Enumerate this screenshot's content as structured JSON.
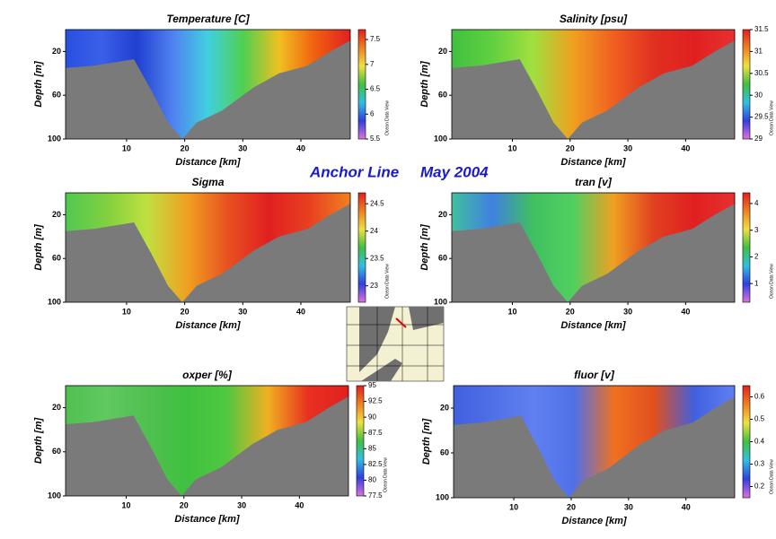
{
  "title": "Anchor Line",
  "subtitle": "May 2004",
  "watermark": "Ocean Data View",
  "colorscale": [
    "#e070e0",
    "#3040e0",
    "#30c0e0",
    "#40c040",
    "#f0e040",
    "#f08020",
    "#e02020"
  ],
  "chart_data": [
    {
      "type": "contour",
      "title": "Temperature [C]",
      "xlabel": "Distance [km]",
      "ylabel": "Depth [m]",
      "xlim": [
        -0.5,
        48.5
      ],
      "xticks": [
        10,
        20,
        30,
        40
      ],
      "ylim": [
        100,
        0
      ],
      "yticks": [
        20,
        60,
        100
      ],
      "colorbar": {
        "lim": [
          5.5,
          7.7
        ],
        "ticks": [
          5.5,
          6,
          6.5,
          7,
          7.5
        ]
      },
      "field_colors": [
        "#2850e0",
        "#3a60e8",
        "#2040d0",
        "#5080f0",
        "#40d0e0",
        "#50d050",
        "#f0c020",
        "#f06010",
        "#e02020"
      ]
    },
    {
      "type": "contour",
      "title": "Salinity [psu]",
      "xlabel": "Distance [km]",
      "ylabel": "Depth [m]",
      "xlim": [
        -0.5,
        48.5
      ],
      "xticks": [
        10,
        20,
        30,
        40
      ],
      "ylim": [
        100,
        0
      ],
      "yticks": [
        20,
        60,
        100
      ],
      "colorbar": {
        "lim": [
          29,
          31.5
        ],
        "ticks": [
          29,
          29.5,
          30,
          30.5,
          31,
          31.5
        ]
      },
      "field_colors": [
        "#40c040",
        "#60d040",
        "#a0e040",
        "#f0a020",
        "#f06020",
        "#e03020",
        "#e02020",
        "#e83030"
      ]
    },
    {
      "type": "contour",
      "title": "Sigma",
      "xlabel": "Distance [km]",
      "ylabel": "Depth [m]",
      "xlim": [
        -0.5,
        48.5
      ],
      "xticks": [
        10,
        20,
        30,
        40
      ],
      "ylim": [
        100,
        0
      ],
      "yticks": [
        20,
        60,
        100
      ],
      "colorbar": {
        "lim": [
          22.7,
          24.7
        ],
        "ticks": [
          23,
          23.5,
          24,
          24.5
        ]
      },
      "field_colors": [
        "#50c850",
        "#80d040",
        "#c0e040",
        "#f0a020",
        "#e85020",
        "#e02020",
        "#e84020",
        "#f08020"
      ]
    },
    {
      "type": "contour",
      "title": "tran [v]",
      "xlabel": "Distance [km]",
      "ylabel": "Depth [m]",
      "xlim": [
        -0.5,
        48.5
      ],
      "xticks": [
        10,
        20,
        30,
        40
      ],
      "ylim": [
        100,
        0
      ],
      "yticks": [
        20,
        60,
        100
      ],
      "colorbar": {
        "lim": [
          0.3,
          4.4
        ],
        "ticks": [
          1,
          2,
          3,
          4
        ]
      },
      "field_colors": [
        "#40c0a0",
        "#4080e0",
        "#40c060",
        "#50d060",
        "#f0a020",
        "#e04020",
        "#e02020",
        "#e83030"
      ]
    },
    {
      "type": "contour",
      "title": "oxper [%]",
      "xlabel": "Distance [km]",
      "ylabel": "Depth [m]",
      "xlim": [
        -0.5,
        48.5
      ],
      "xticks": [
        10,
        20,
        30,
        40
      ],
      "ylim": [
        100,
        0
      ],
      "yticks": [
        20,
        60,
        100
      ],
      "colorbar": {
        "lim": [
          77.5,
          95
        ],
        "ticks": [
          77.5,
          80,
          82.5,
          85,
          87.5,
          90,
          92.5,
          95
        ]
      },
      "field_colors": [
        "#50c050",
        "#60c860",
        "#50c050",
        "#40c040",
        "#50c840",
        "#f0b020",
        "#e83020",
        "#e02020"
      ]
    },
    {
      "type": "contour",
      "title": "fluor [v]",
      "xlabel": "Distance [km]",
      "ylabel": "Depth [m]",
      "xlim": [
        -0.5,
        48.5
      ],
      "xticks": [
        10,
        20,
        30,
        40
      ],
      "ylim": [
        100,
        0
      ],
      "yticks": [
        20,
        60,
        100
      ],
      "colorbar": {
        "lim": [
          0.15,
          0.65
        ],
        "ticks": [
          0.2,
          0.3,
          0.4,
          0.5,
          0.6
        ]
      },
      "field_colors": [
        "#4060e0",
        "#5070e8",
        "#6080f0",
        "#5070e8",
        "#f07020",
        "#e05020",
        "#4060e0",
        "#6080f0"
      ]
    }
  ]
}
